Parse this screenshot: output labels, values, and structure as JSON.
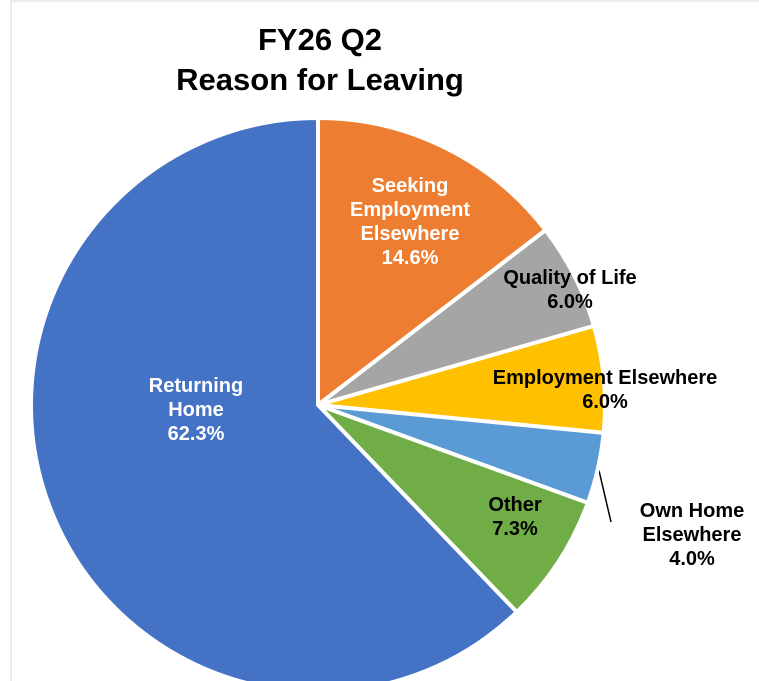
{
  "chart_data": {
    "type": "pie",
    "title": "FY26 Q2",
    "subtitle": "Reason for Leaving",
    "categories": [
      "Seeking Employment Elsewhere",
      "Quality of Life",
      "Employment Elsewhere",
      "Own Home Elsewhere",
      "Other",
      "Returning Home"
    ],
    "values": [
      14.6,
      6.0,
      6.0,
      4.0,
      7.3,
      62.3
    ],
    "value_labels": [
      "14.6%",
      "6.0%",
      "6.0%",
      "4.0%",
      "7.3%",
      "62.3%"
    ],
    "colors": [
      "#ed7d31",
      "#a5a5a5",
      "#ffc000",
      "#5b9bd5",
      "#70ad47",
      "#4472c4"
    ]
  }
}
